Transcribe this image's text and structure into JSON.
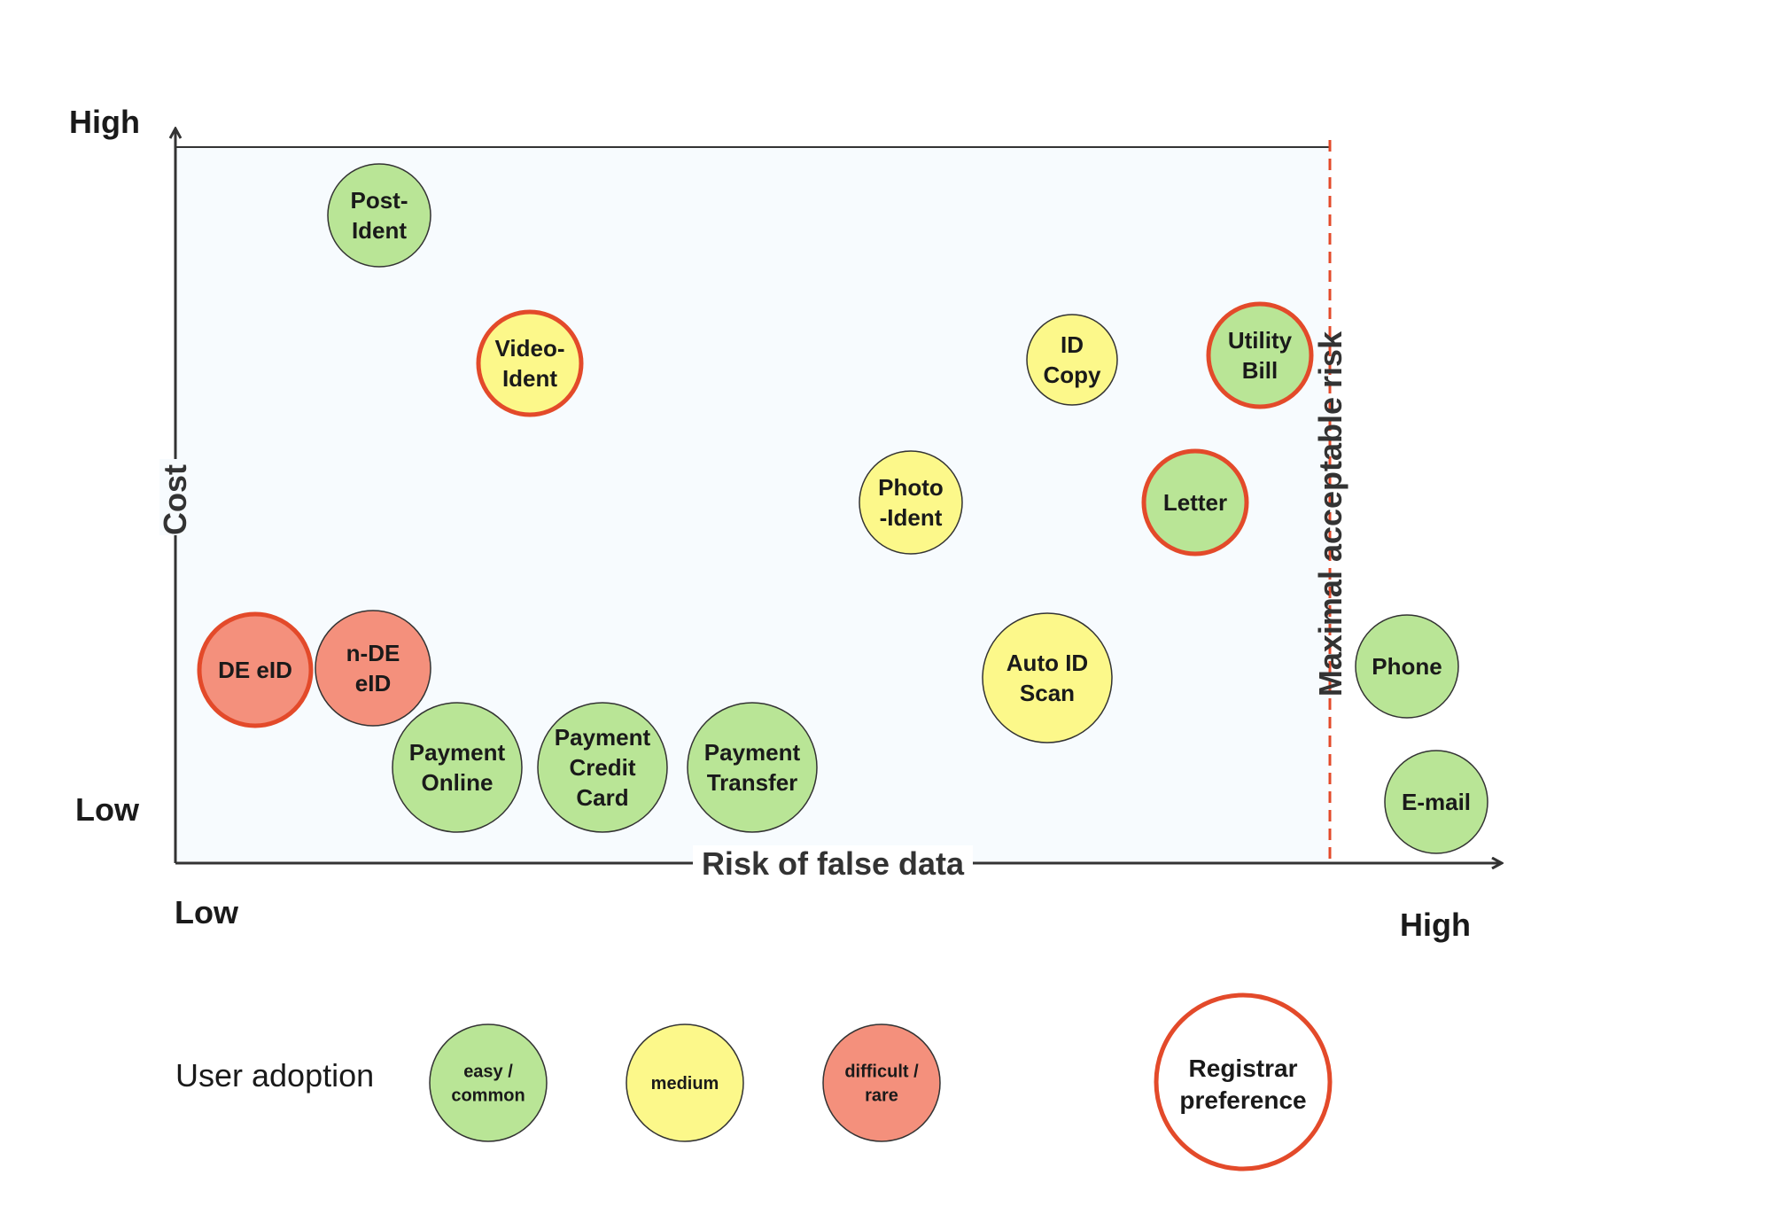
{
  "axes": {
    "y_high": "High",
    "y_low": "Low",
    "y_title": "Cost",
    "x_low": "Low",
    "x_high": "High",
    "x_title": "Risk of false data",
    "threshold_label": "Maximal acceptable risk"
  },
  "colors": {
    "easy": "#b9e596",
    "medium": "#fcf88a",
    "difficult": "#f4907c",
    "registrar_outline": "#e34a2a",
    "plot_background": "#f7fbfe",
    "axis": "#333333"
  },
  "chart_data": {
    "type": "scatter",
    "xlabel": "Risk of false data",
    "ylabel": "Cost",
    "threshold_label": "Maximal acceptable risk",
    "points": [
      {
        "id": "post-ident",
        "lines": [
          "Post-",
          "Ident"
        ],
        "adoption": "easy",
        "registrar": false
      },
      {
        "id": "video-ident",
        "lines": [
          "Video-",
          "Ident"
        ],
        "adoption": "medium",
        "registrar": true
      },
      {
        "id": "id-copy",
        "lines": [
          "ID",
          "Copy"
        ],
        "adoption": "medium",
        "registrar": false
      },
      {
        "id": "utility-bill",
        "lines": [
          "Utility",
          "Bill"
        ],
        "adoption": "easy",
        "registrar": true
      },
      {
        "id": "photo-ident",
        "lines": [
          "Photo",
          "-Ident"
        ],
        "adoption": "medium",
        "registrar": false
      },
      {
        "id": "letter",
        "lines": [
          "Letter"
        ],
        "adoption": "easy",
        "registrar": true
      },
      {
        "id": "de-eid",
        "lines": [
          "DE eID"
        ],
        "adoption": "difficult",
        "registrar": true
      },
      {
        "id": "n-de-eid",
        "lines": [
          "n-DE",
          "eID"
        ],
        "adoption": "difficult",
        "registrar": false
      },
      {
        "id": "auto-id-scan",
        "lines": [
          "Auto ID",
          "Scan"
        ],
        "adoption": "medium",
        "registrar": false
      },
      {
        "id": "payment-online",
        "lines": [
          "Payment",
          "Online"
        ],
        "adoption": "easy",
        "registrar": false
      },
      {
        "id": "payment-credit-card",
        "lines": [
          "Payment",
          "Credit",
          "Card"
        ],
        "adoption": "easy",
        "registrar": false
      },
      {
        "id": "payment-transfer",
        "lines": [
          "Payment",
          "Transfer"
        ],
        "adoption": "easy",
        "registrar": false
      },
      {
        "id": "phone",
        "lines": [
          "Phone"
        ],
        "adoption": "easy",
        "registrar": false
      },
      {
        "id": "e-mail",
        "lines": [
          "E-mail"
        ],
        "adoption": "easy",
        "registrar": false
      }
    ]
  },
  "legend": {
    "title": "User adoption",
    "items": [
      {
        "key": "easy",
        "lines": [
          "easy /",
          "common"
        ]
      },
      {
        "key": "medium",
        "lines": [
          "medium"
        ]
      },
      {
        "key": "difficult",
        "lines": [
          "difficult /",
          "rare"
        ]
      }
    ],
    "registrar_lines": [
      "Registrar",
      "preference"
    ]
  }
}
